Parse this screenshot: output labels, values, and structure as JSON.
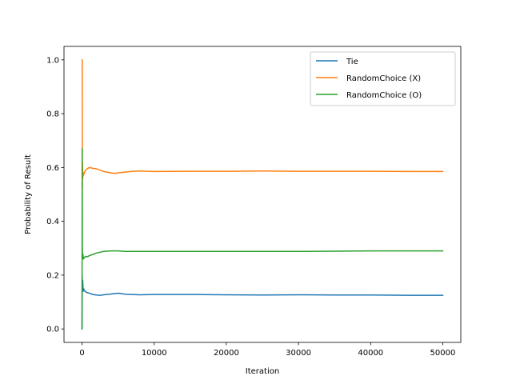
{
  "chart_data": {
    "type": "line",
    "title": "",
    "xlabel": "Iteration",
    "ylabel": "Probability of Result",
    "xlim": [
      -2500,
      52500
    ],
    "ylim": [
      -0.05,
      1.05
    ],
    "xticks": [
      0,
      10000,
      20000,
      30000,
      40000,
      50000
    ],
    "xtick_labels": [
      "0",
      "10000",
      "20000",
      "30000",
      "40000",
      "50000"
    ],
    "yticks": [
      0.0,
      0.2,
      0.4,
      0.6,
      0.8,
      1.0
    ],
    "ytick_labels": [
      "0.0",
      "0.2",
      "0.4",
      "0.6",
      "0.8",
      "1.0"
    ],
    "grid": false,
    "legend_position": "top-right",
    "series": [
      {
        "name": "Tie",
        "color": "#1f77b4",
        "x": [
          0,
          20,
          50,
          100,
          150,
          200,
          300,
          400,
          500,
          700,
          1000,
          1500,
          2000,
          2500,
          3000,
          4000,
          5000,
          6000,
          8000,
          10000,
          15000,
          20000,
          25000,
          30000,
          35000,
          40000,
          45000,
          50000
        ],
        "y": [
          0.0,
          0.2,
          0.15,
          0.18,
          0.14,
          0.15,
          0.145,
          0.14,
          0.138,
          0.135,
          0.133,
          0.128,
          0.126,
          0.125,
          0.127,
          0.13,
          0.133,
          0.129,
          0.127,
          0.128,
          0.128,
          0.127,
          0.126,
          0.127,
          0.126,
          0.126,
          0.125,
          0.125
        ]
      },
      {
        "name": "RandomChoice (X)",
        "color": "#ff7f0e",
        "x": [
          0,
          20,
          40,
          60,
          100,
          150,
          200,
          300,
          500,
          700,
          1000,
          1500,
          2000,
          2500,
          3000,
          4000,
          4500,
          5000,
          6000,
          7000,
          8000,
          10000,
          15000,
          20000,
          25000,
          30000,
          35000,
          40000,
          45000,
          50000
        ],
        "y": [
          1.0,
          1.0,
          0.52,
          0.62,
          0.56,
          0.58,
          0.57,
          0.58,
          0.59,
          0.595,
          0.6,
          0.597,
          0.595,
          0.59,
          0.585,
          0.58,
          0.578,
          0.58,
          0.583,
          0.586,
          0.587,
          0.585,
          0.586,
          0.586,
          0.587,
          0.586,
          0.586,
          0.586,
          0.585,
          0.585
        ]
      },
      {
        "name": "RandomChoice (O)",
        "color": "#2ca02c",
        "x": [
          0,
          20,
          40,
          60,
          100,
          150,
          200,
          300,
          500,
          700,
          1000,
          1500,
          2000,
          2500,
          3000,
          4000,
          5000,
          6000,
          8000,
          10000,
          15000,
          20000,
          25000,
          30000,
          35000,
          40000,
          45000,
          50000
        ],
        "y": [
          0.0,
          0.67,
          0.3,
          0.26,
          0.28,
          0.27,
          0.26,
          0.265,
          0.27,
          0.268,
          0.272,
          0.277,
          0.282,
          0.285,
          0.288,
          0.29,
          0.29,
          0.288,
          0.288,
          0.288,
          0.288,
          0.288,
          0.288,
          0.288,
          0.289,
          0.29,
          0.29,
          0.29
        ]
      }
    ]
  }
}
